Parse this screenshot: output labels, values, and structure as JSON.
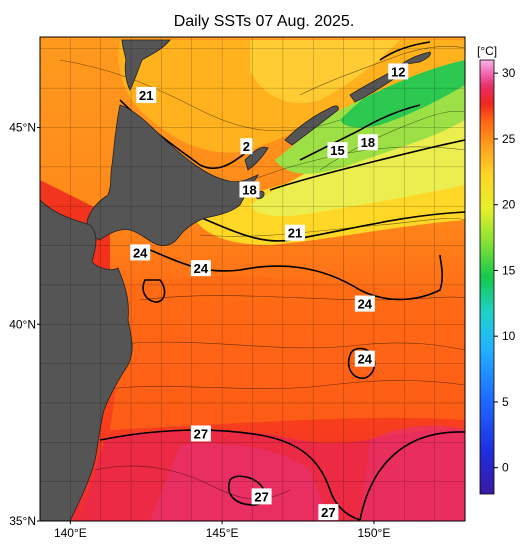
{
  "title": "Daily SSTs 07 Aug. 2025.",
  "colorbar": {
    "unit": "[°C]",
    "ticks": [
      "30",
      "25",
      "20",
      "15",
      "10",
      "5",
      "0"
    ],
    "tick_values": [
      30,
      25,
      20,
      15,
      10,
      5,
      0
    ],
    "range": [
      -2,
      31
    ]
  },
  "axes": {
    "lat_labels": [
      "45°N",
      "40°N",
      "35°N"
    ],
    "lat_values": [
      45,
      40,
      35
    ],
    "lon_labels": [
      "140°E",
      "145°E",
      "150°E"
    ],
    "lon_values": [
      140,
      145,
      150
    ],
    "lon_range": [
      139,
      153
    ],
    "lat_range": [
      35,
      47.3
    ]
  },
  "contour_labels": [
    {
      "text": "12",
      "lon": 150.8,
      "lat": 46.4
    },
    {
      "text": "21",
      "lon": 142.5,
      "lat": 45.8
    },
    {
      "text": "2",
      "lon": 145.8,
      "lat": 44.5
    },
    {
      "text": "15",
      "lon": 148.8,
      "lat": 44.4
    },
    {
      "text": "18",
      "lon": 149.8,
      "lat": 44.6
    },
    {
      "text": "18",
      "lon": 145.9,
      "lat": 43.4
    },
    {
      "text": "21",
      "lon": 147.4,
      "lat": 42.3
    },
    {
      "text": "24",
      "lon": 142.3,
      "lat": 41.8
    },
    {
      "text": "24",
      "lon": 144.3,
      "lat": 41.4
    },
    {
      "text": "24",
      "lon": 149.7,
      "lat": 40.5
    },
    {
      "text": "24",
      "lon": 149.7,
      "lat": 39.1
    },
    {
      "text": "27",
      "lon": 144.3,
      "lat": 37.2
    },
    {
      "text": "27",
      "lon": 146.3,
      "lat": 35.6
    },
    {
      "text": "27",
      "lon": 148.5,
      "lat": 35.2
    }
  ],
  "colors": {
    "land": "#555555",
    "palette": [
      "#2b1ad9",
      "#1f5cff",
      "#22a9ff",
      "#20d8e8",
      "#16c860",
      "#7ae23a",
      "#d7f028",
      "#ffe62a",
      "#ffb41e",
      "#ff8a1a",
      "#ff5a14",
      "#f0231e",
      "#e8285a",
      "#f05aa5",
      "#f8a0dc"
    ]
  }
}
